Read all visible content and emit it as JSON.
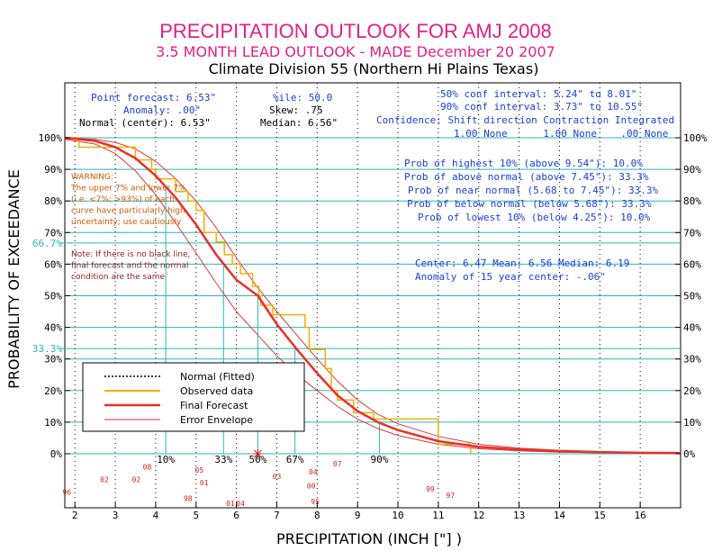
{
  "title": "PRECIPITATION OUTLOOK FOR AMJ 2008",
  "subtitle": "3.5 MONTH LEAD OUTLOOK  - MADE December 20 2007",
  "division": "Climate Division 55 (Northern Hi Plains Texas)",
  "stats": {
    "point_forecast": "Point forecast: 6.53\"",
    "anomaly": "Anomaly: .00\"",
    "normal_center": "Normal (center): 6.53\"",
    "ile": "%ile: 50.0",
    "skew": "Skew: .75",
    "median": "Median: 6.56\"",
    "conf50": "50% conf interval: 5.24\" to 8.01\"",
    "conf90": "90% conf interval: 3.73\" to 10.55\"",
    "confidence_header": "Confidence: Shift direction   Contraction  Integrated",
    "confidence_values": "1.00 None      1.00 None    .00 None"
  },
  "probabilities": [
    "Prob of highest 10% (above 9.54\"): 10.0%",
    "Prob of above normal (above 7.45\"): 33.3%",
    "Prob of near normal (5.68 to 7.45\"): 33.3%",
    "Prob of below normal (below 5.68\"): 33.3%",
    "Prob of lowest 10% (below 4.25\"): 10.0%"
  ],
  "center_line": "Center: 6.47 Mean: 6.56 Median: 6.19",
  "anomaly_line": "Anomaly of 15 year center: -.06\"",
  "warning_lines": [
    "WARNING:",
    "The upper 7% and lower 7%",
    "(i.e. <7%; >93%) of each",
    "curve have particularly high",
    "uncertainty; use cautiously"
  ],
  "note_lines": [
    "Note: If there is no black line,",
    "final forecast and the normal",
    "condition are the same"
  ],
  "legend": {
    "normal": "Normal (Fitted)",
    "observed": "Observed data",
    "final": "Final Forecast",
    "envelope": "Error Envelope"
  },
  "colors": {
    "title": "#e0208a",
    "blue_text": "#1a3fd6",
    "orange_text": "#c85a00",
    "cyan": "#2ab5be",
    "observed": "#f0b000",
    "forecast": "#e8302a",
    "envelope": "#d63a3a",
    "year_labels": "#cc2020"
  },
  "chart_data": {
    "type": "line",
    "xlabel": "PRECIPITATION (INCH [\"] )",
    "ylabel": "PROBABILITY OF EXCEEDANCE",
    "xlim": [
      1.75,
      17
    ],
    "ylim": [
      0,
      100
    ],
    "x_ticks": [
      2,
      3,
      4,
      5,
      6,
      7,
      8,
      9,
      10,
      11,
      12,
      13,
      14,
      15,
      16
    ],
    "y_ticks": [
      0,
      10,
      20,
      30,
      40,
      50,
      60,
      70,
      80,
      90,
      100
    ],
    "y_tick_labels": [
      "0%",
      "10%",
      "20%",
      "30%",
      "40%",
      "50%",
      "60%",
      "70%",
      "80%",
      "90%",
      "100%"
    ],
    "extra_y_labels": [
      {
        "value": 66.7,
        "label": "66.7%"
      },
      {
        "value": 33.3,
        "label": "33.3%"
      }
    ],
    "percentile_markers": [
      {
        "x": 4.25,
        "label": "10%"
      },
      {
        "x": 5.68,
        "label": "33%"
      },
      {
        "x": 6.53,
        "label": "50%"
      },
      {
        "x": 7.45,
        "label": "67%"
      },
      {
        "x": 9.54,
        "label": "90%"
      }
    ],
    "final_forecast": [
      {
        "x": 1.75,
        "y": 100
      },
      {
        "x": 2.5,
        "y": 99
      },
      {
        "x": 3.0,
        "y": 97
      },
      {
        "x": 3.5,
        "y": 93.5
      },
      {
        "x": 4.0,
        "y": 88
      },
      {
        "x": 4.5,
        "y": 81
      },
      {
        "x": 5.0,
        "y": 72.5
      },
      {
        "x": 5.5,
        "y": 63
      },
      {
        "x": 6.0,
        "y": 55
      },
      {
        "x": 6.53,
        "y": 50
      },
      {
        "x": 7.0,
        "y": 41
      },
      {
        "x": 7.5,
        "y": 33
      },
      {
        "x": 8.0,
        "y": 25.5
      },
      {
        "x": 8.5,
        "y": 18.5
      },
      {
        "x": 9.0,
        "y": 13.5
      },
      {
        "x": 9.5,
        "y": 10
      },
      {
        "x": 10.0,
        "y": 7.5
      },
      {
        "x": 11.0,
        "y": 4
      },
      {
        "x": 12.0,
        "y": 2.2
      },
      {
        "x": 13.0,
        "y": 1.3
      },
      {
        "x": 14.0,
        "y": 0.8
      },
      {
        "x": 15.0,
        "y": 0.5
      },
      {
        "x": 16.0,
        "y": 0.3
      },
      {
        "x": 17.0,
        "y": 0.2
      }
    ],
    "normal_fitted": [
      {
        "x": 1.75,
        "y": 100
      },
      {
        "x": 2.5,
        "y": 99
      },
      {
        "x": 3.0,
        "y": 97
      },
      {
        "x": 3.5,
        "y": 93.5
      },
      {
        "x": 4.0,
        "y": 88
      },
      {
        "x": 4.5,
        "y": 81
      },
      {
        "x": 5.0,
        "y": 72.5
      },
      {
        "x": 5.5,
        "y": 63
      },
      {
        "x": 6.0,
        "y": 55
      },
      {
        "x": 6.53,
        "y": 50
      },
      {
        "x": 7.0,
        "y": 41
      },
      {
        "x": 7.5,
        "y": 33
      },
      {
        "x": 8.0,
        "y": 25.5
      },
      {
        "x": 8.5,
        "y": 18.5
      },
      {
        "x": 9.0,
        "y": 13.5
      },
      {
        "x": 9.5,
        "y": 10
      },
      {
        "x": 10.0,
        "y": 7.5
      },
      {
        "x": 11.0,
        "y": 4
      },
      {
        "x": 12.0,
        "y": 2.2
      },
      {
        "x": 13.0,
        "y": 1.3
      },
      {
        "x": 14.0,
        "y": 0.8
      },
      {
        "x": 15.0,
        "y": 0.5
      },
      {
        "x": 16.0,
        "y": 0.3
      },
      {
        "x": 17.0,
        "y": 0.2
      }
    ],
    "envelope_upper": [
      {
        "x": 1.75,
        "y": 100
      },
      {
        "x": 2.5,
        "y": 99.5
      },
      {
        "x": 3.0,
        "y": 98.5
      },
      {
        "x": 3.5,
        "y": 96.5
      },
      {
        "x": 4.0,
        "y": 92.5
      },
      {
        "x": 4.5,
        "y": 87
      },
      {
        "x": 5.0,
        "y": 80
      },
      {
        "x": 5.5,
        "y": 71.5
      },
      {
        "x": 6.0,
        "y": 62
      },
      {
        "x": 6.5,
        "y": 53
      },
      {
        "x": 7.0,
        "y": 45
      },
      {
        "x": 7.5,
        "y": 37.5
      },
      {
        "x": 8.0,
        "y": 30
      },
      {
        "x": 8.5,
        "y": 23
      },
      {
        "x": 9.0,
        "y": 17
      },
      {
        "x": 9.5,
        "y": 12.5
      },
      {
        "x": 10.0,
        "y": 9.5
      },
      {
        "x": 11.0,
        "y": 5.5
      },
      {
        "x": 12.0,
        "y": 3
      },
      {
        "x": 13.0,
        "y": 1.8
      },
      {
        "x": 14.0,
        "y": 1.1
      },
      {
        "x": 15.0,
        "y": 0.7
      },
      {
        "x": 16.0,
        "y": 0.4
      },
      {
        "x": 17.0,
        "y": 0.3
      }
    ],
    "envelope_lower": [
      {
        "x": 1.75,
        "y": 99.5
      },
      {
        "x": 2.5,
        "y": 98
      },
      {
        "x": 3.0,
        "y": 95
      },
      {
        "x": 3.5,
        "y": 89.5
      },
      {
        "x": 4.0,
        "y": 82
      },
      {
        "x": 4.5,
        "y": 73
      },
      {
        "x": 5.0,
        "y": 63.5
      },
      {
        "x": 5.5,
        "y": 54
      },
      {
        "x": 6.0,
        "y": 45
      },
      {
        "x": 6.5,
        "y": 38
      },
      {
        "x": 7.0,
        "y": 31
      },
      {
        "x": 7.5,
        "y": 25
      },
      {
        "x": 8.0,
        "y": 20
      },
      {
        "x": 8.5,
        "y": 15
      },
      {
        "x": 9.0,
        "y": 11
      },
      {
        "x": 9.5,
        "y": 8
      },
      {
        "x": 10.0,
        "y": 5.8
      },
      {
        "x": 11.0,
        "y": 3
      },
      {
        "x": 12.0,
        "y": 1.6
      },
      {
        "x": 13.0,
        "y": 0.9
      },
      {
        "x": 14.0,
        "y": 0.5
      },
      {
        "x": 15.0,
        "y": 0.3
      },
      {
        "x": 16.0,
        "y": 0.2
      },
      {
        "x": 17.0,
        "y": 0.1
      }
    ],
    "observed_steps": [
      {
        "x": 1.75,
        "y": 100
      },
      {
        "x": 2.1,
        "y": 100
      },
      {
        "x": 2.1,
        "y": 97
      },
      {
        "x": 3.5,
        "y": 97
      },
      {
        "x": 3.5,
        "y": 93
      },
      {
        "x": 3.9,
        "y": 93
      },
      {
        "x": 3.9,
        "y": 90
      },
      {
        "x": 4.0,
        "y": 90
      },
      {
        "x": 4.0,
        "y": 87
      },
      {
        "x": 4.5,
        "y": 87
      },
      {
        "x": 4.5,
        "y": 83
      },
      {
        "x": 4.8,
        "y": 83
      },
      {
        "x": 4.8,
        "y": 80
      },
      {
        "x": 5.0,
        "y": 80
      },
      {
        "x": 5.0,
        "y": 77
      },
      {
        "x": 5.2,
        "y": 77
      },
      {
        "x": 5.2,
        "y": 70
      },
      {
        "x": 5.5,
        "y": 70
      },
      {
        "x": 5.5,
        "y": 67
      },
      {
        "x": 5.7,
        "y": 67
      },
      {
        "x": 5.7,
        "y": 63
      },
      {
        "x": 5.9,
        "y": 63
      },
      {
        "x": 5.9,
        "y": 60
      },
      {
        "x": 6.1,
        "y": 60
      },
      {
        "x": 6.1,
        "y": 57
      },
      {
        "x": 6.4,
        "y": 57
      },
      {
        "x": 6.4,
        "y": 53
      },
      {
        "x": 6.55,
        "y": 53
      },
      {
        "x": 6.55,
        "y": 50
      },
      {
        "x": 6.6,
        "y": 50
      },
      {
        "x": 6.6,
        "y": 47
      },
      {
        "x": 6.9,
        "y": 47
      },
      {
        "x": 6.9,
        "y": 44
      },
      {
        "x": 7.7,
        "y": 44
      },
      {
        "x": 7.7,
        "y": 40
      },
      {
        "x": 7.8,
        "y": 40
      },
      {
        "x": 7.8,
        "y": 33
      },
      {
        "x": 8.2,
        "y": 33
      },
      {
        "x": 8.2,
        "y": 27
      },
      {
        "x": 8.35,
        "y": 27
      },
      {
        "x": 8.35,
        "y": 20
      },
      {
        "x": 8.5,
        "y": 20
      },
      {
        "x": 8.5,
        "y": 17
      },
      {
        "x": 8.9,
        "y": 17
      },
      {
        "x": 8.9,
        "y": 13
      },
      {
        "x": 9.4,
        "y": 13
      },
      {
        "x": 9.4,
        "y": 11
      },
      {
        "x": 11.0,
        "y": 11
      },
      {
        "x": 11.0,
        "y": 3
      },
      {
        "x": 11.8,
        "y": 3
      },
      {
        "x": 11.8,
        "y": 0
      }
    ],
    "point_forecast_marker": {
      "x": 6.53,
      "y": 0
    },
    "year_labels": [
      {
        "x": 1.8,
        "y": -13,
        "label": "96"
      },
      {
        "x": 2.73,
        "y": -9,
        "label": "02"
      },
      {
        "x": 3.79,
        "y": -5,
        "label": "08"
      },
      {
        "x": 3.52,
        "y": -9,
        "label": "02"
      },
      {
        "x": 4.8,
        "y": -15,
        "label": "98"
      },
      {
        "x": 5.08,
        "y": -6,
        "label": "05"
      },
      {
        "x": 5.2,
        "y": -10,
        "label": "01"
      },
      {
        "x": 5.85,
        "y": -16.5,
        "label": "01"
      },
      {
        "x": 6.1,
        "y": -16.5,
        "label": "04"
      },
      {
        "x": 7.0,
        "y": -8,
        "label": "03"
      },
      {
        "x": 7.9,
        "y": -6.5,
        "label": "04"
      },
      {
        "x": 7.85,
        "y": -11,
        "label": "00"
      },
      {
        "x": 7.95,
        "y": -16,
        "label": "95"
      },
      {
        "x": 8.5,
        "y": -4,
        "label": "07"
      },
      {
        "x": 10.8,
        "y": -12,
        "label": "99"
      },
      {
        "x": 11.3,
        "y": -14,
        "label": "97"
      }
    ]
  }
}
